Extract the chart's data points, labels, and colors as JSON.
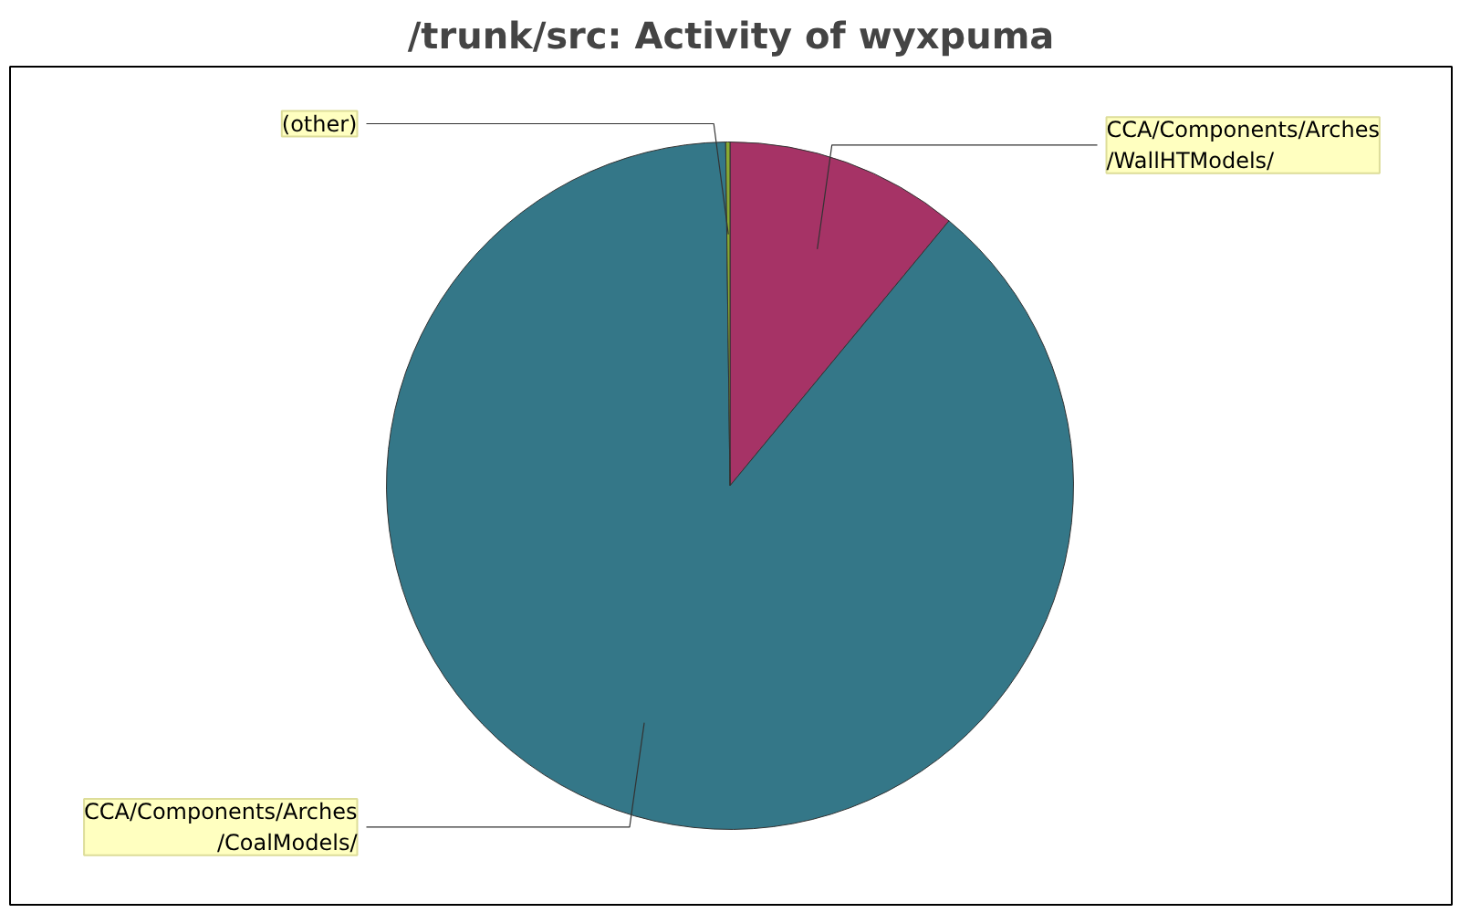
{
  "chart_data": {
    "type": "pie",
    "title": "/trunk/src: Activity of wyxpuma",
    "categories": [
      "CCA/Components/Arches/WallHTModels/",
      "CCA/Components/Arches/CoalModels/",
      "(other)"
    ],
    "values": [
      11,
      88.8,
      0.2
    ],
    "colors": [
      "#a63366",
      "#347788",
      "#88aa33"
    ]
  }
}
